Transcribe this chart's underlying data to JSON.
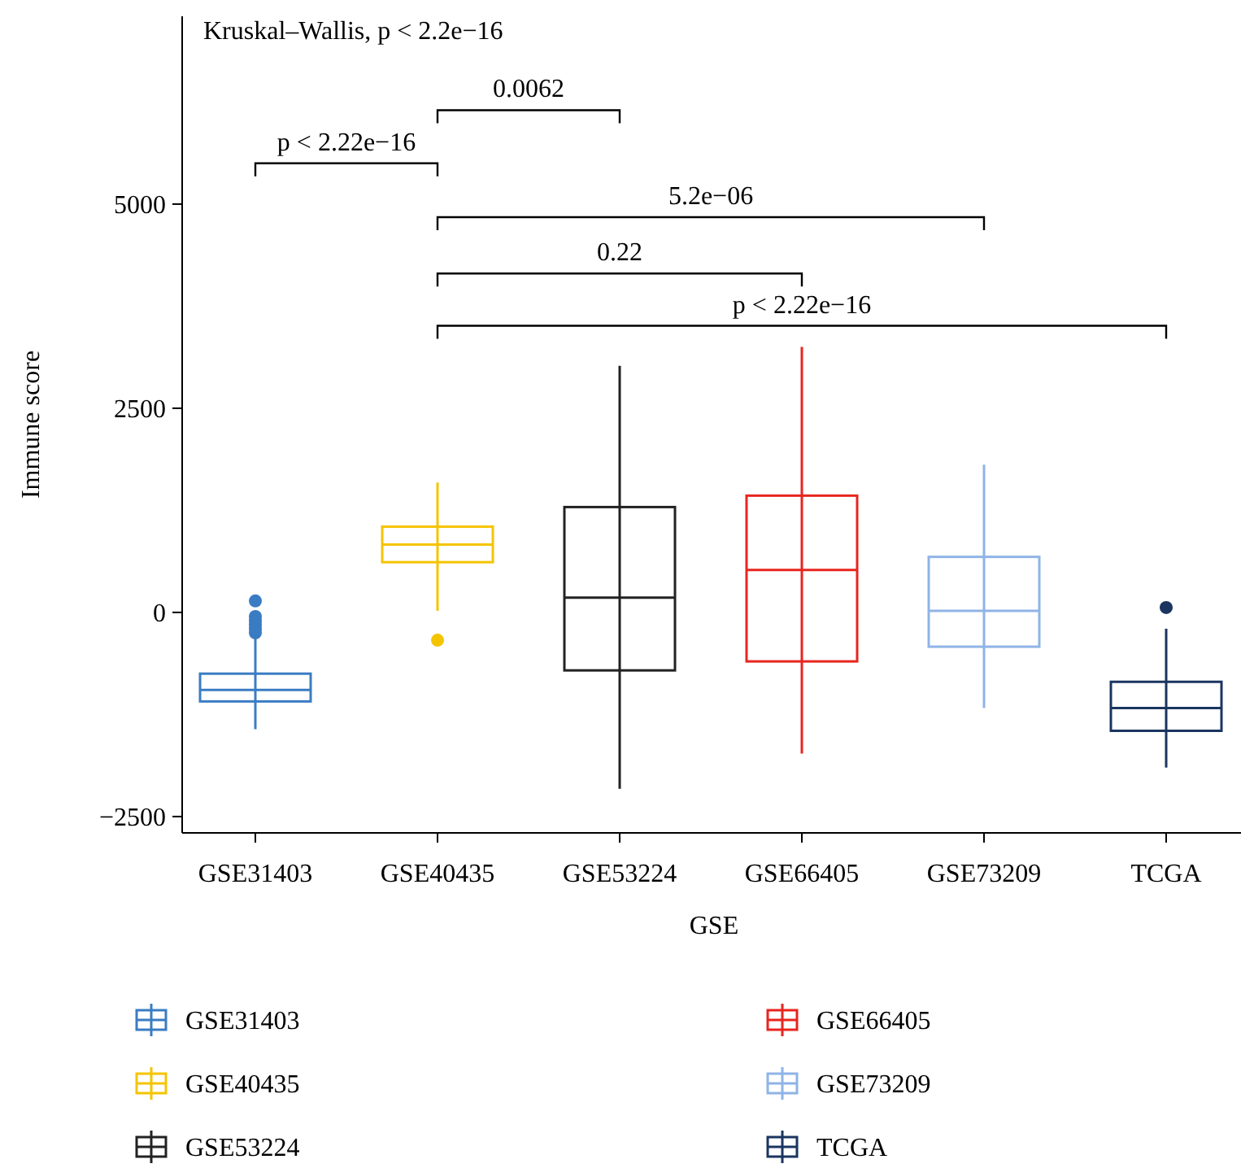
{
  "chart_data": {
    "type": "box",
    "xlabel": "GSE",
    "ylabel": "Immune score",
    "categories": [
      "GSE31403",
      "GSE40435",
      "GSE53224",
      "GSE66405",
      "GSE73209",
      "TCGA"
    ],
    "series": [
      {
        "name": "GSE31403",
        "color": "#3a7cc3",
        "boxes": [
          {
            "low": -1430,
            "q1": -1090,
            "median": -950,
            "q3": -750,
            "high": -300,
            "outliers": [
              140,
              -50,
              -100,
              -150,
              -200,
              -250
            ]
          },
          null,
          null,
          null,
          null,
          null
        ]
      },
      {
        "name": "GSE40435",
        "color": "#f5c400",
        "boxes": [
          null,
          {
            "low": 20,
            "q1": 615,
            "median": 830,
            "q3": 1050,
            "high": 1590,
            "outliers": [
              -340
            ]
          },
          null,
          null,
          null,
          null
        ]
      },
      {
        "name": "GSE53224",
        "color": "#222222",
        "boxes": [
          null,
          null,
          {
            "low": -2160,
            "q1": -710,
            "median": 180,
            "q3": 1290,
            "high": 3020
          },
          null,
          null,
          null
        ]
      },
      {
        "name": "GSE66405",
        "color": "#e8251f",
        "boxes": [
          null,
          null,
          null,
          {
            "low": -1730,
            "q1": -600,
            "median": 520,
            "q3": 1430,
            "high": 3250
          },
          null,
          null
        ]
      },
      {
        "name": "GSE73209",
        "color": "#8fb4e6",
        "boxes": [
          null,
          null,
          null,
          null,
          {
            "low": -1170,
            "q1": -420,
            "median": 20,
            "q3": 680,
            "high": 1810
          },
          null
        ]
      },
      {
        "name": "TCGA",
        "color": "#1a3560",
        "boxes": [
          null,
          null,
          null,
          null,
          null,
          {
            "low": -1900,
            "q1": -1450,
            "median": -1170,
            "q3": -850,
            "high": -200,
            "outliers": [
              60
            ]
          }
        ]
      }
    ],
    "ylim": [
      -2700,
      7300
    ],
    "yticks": [
      -2500,
      0,
      2500,
      5000
    ],
    "annotations": [
      "Kruskal–Wallis, p < 2.2e−16",
      "0.0062",
      "p < 2.22e−16",
      "5.2e−06",
      "0.22",
      "p < 2.22e−16"
    ],
    "legend": "bottom",
    "grid": false
  }
}
